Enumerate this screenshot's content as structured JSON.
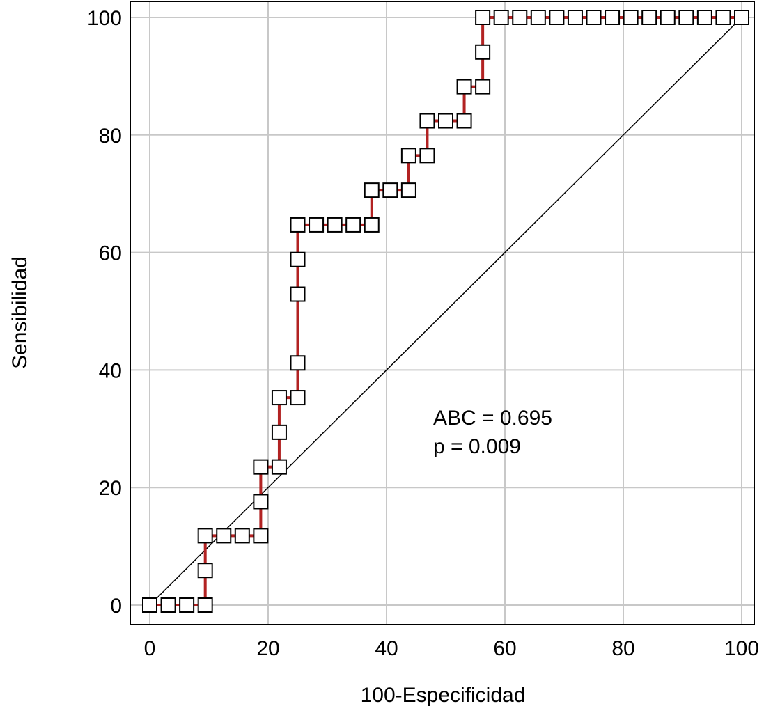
{
  "chart_data": {
    "type": "line",
    "xlabel": "100-Especificidad",
    "ylabel": "Sensibilidad",
    "xlim": [
      0,
      100
    ],
    "ylim": [
      0,
      100
    ],
    "x_ticks": [
      "0",
      "20",
      "40",
      "60",
      "80",
      "100"
    ],
    "y_ticks": [
      "0",
      "20",
      "40",
      "60",
      "80",
      "100"
    ],
    "grid": true,
    "annotations": [
      "ABC = 0.695",
      "p = 0.009"
    ],
    "reference_line": {
      "x": [
        0,
        100
      ],
      "y": [
        0,
        100
      ]
    },
    "colors": {
      "curve": "#b22222",
      "marker_fill": "#ffffff",
      "marker_edge": "#000000",
      "grid": "#c8c8c8",
      "reference": "#000000"
    },
    "series": [
      {
        "x": [
          0,
          3.125,
          6.25,
          9.375,
          9.375,
          9.375,
          12.5,
          15.625,
          18.75,
          18.75,
          18.75,
          21.875,
          21.875,
          21.875,
          25,
          25,
          25,
          25,
          25,
          28.125,
          31.25,
          34.375,
          37.5,
          37.5,
          40.625,
          43.75,
          43.75,
          46.875,
          46.875,
          50,
          53.125,
          53.125,
          56.25,
          56.25,
          56.25,
          59.375,
          62.5,
          65.625,
          68.75,
          71.875,
          75,
          78.125,
          81.25,
          84.375,
          87.5,
          90.625,
          93.75,
          96.875,
          100
        ],
        "y": [
          0,
          0,
          0,
          0,
          5.9,
          11.8,
          11.8,
          11.8,
          11.8,
          17.6,
          23.5,
          23.5,
          29.4,
          35.3,
          35.3,
          41.2,
          52.9,
          58.8,
          64.7,
          64.7,
          64.7,
          64.7,
          64.7,
          70.6,
          70.6,
          70.6,
          76.5,
          76.5,
          82.4,
          82.4,
          82.4,
          88.2,
          88.2,
          94.1,
          100,
          100,
          100,
          100,
          100,
          100,
          100,
          100,
          100,
          100,
          100,
          100,
          100,
          100,
          100
        ]
      }
    ]
  }
}
